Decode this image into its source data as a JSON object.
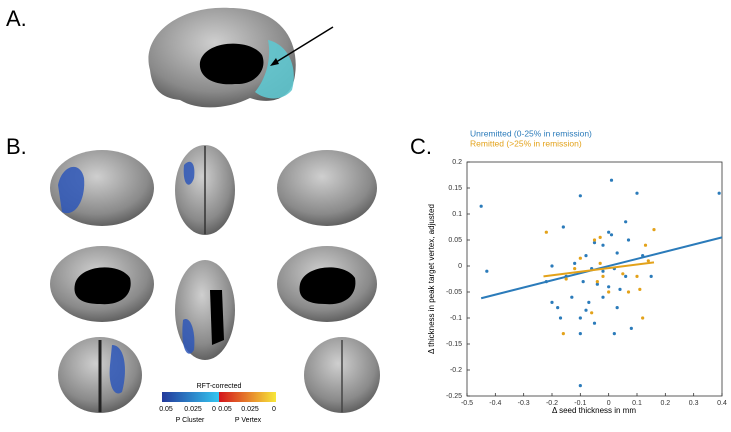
{
  "panels": {
    "a": "A.",
    "b": "B.",
    "c": "C."
  },
  "colorbar": {
    "title": "RFT-corrected",
    "left_ticks": [
      "0.05",
      "0.025",
      "0"
    ],
    "right_ticks": [
      "0.05",
      "0.025",
      "0"
    ],
    "left_label": "P Cluster",
    "right_label": "P Vertex"
  },
  "chart_data": {
    "type": "scatter",
    "xlabel": "Δ seed thickness in mm",
    "ylabel": "Δ thickness in peak target vertex, adjusted",
    "xlim": [
      -0.5,
      0.4
    ],
    "xticks": [
      -0.5,
      -0.4,
      -0.3,
      -0.2,
      -0.1,
      0,
      0.1,
      0.2,
      0.3,
      0.4
    ],
    "ylim": [
      -0.25,
      0.2
    ],
    "yticks": [
      -0.25,
      -0.2,
      -0.15,
      -0.1,
      -0.05,
      0,
      0.05,
      0.1,
      0.15,
      0.2
    ],
    "series": [
      {
        "name": "Unremitted (0-25% in remission)",
        "color": "#2b7bba",
        "x": [
          -0.45,
          -0.43,
          0.39,
          -0.1,
          0.01,
          -0.1,
          0.1,
          -0.16,
          0.06,
          0.01,
          0.0,
          -0.05,
          0.07,
          -0.02,
          -0.08,
          0.03,
          0.12,
          -0.2,
          -0.12,
          -0.06,
          -0.02,
          0.02,
          0.06,
          -0.15,
          -0.09,
          -0.04,
          0.0,
          0.04,
          -0.2,
          -0.18,
          -0.13,
          -0.07,
          -0.02,
          0.03,
          -0.17,
          -0.1,
          -0.05,
          0.08,
          -0.1,
          0.02,
          -0.22,
          0.15,
          -0.08
        ],
        "values": [
          0.115,
          -0.01,
          0.14,
          -0.23,
          0.165,
          0.135,
          0.14,
          0.075,
          0.085,
          0.06,
          0.065,
          0.045,
          0.05,
          0.04,
          0.02,
          0.025,
          0.02,
          0.0,
          0.005,
          -0.005,
          -0.01,
          -0.005,
          -0.02,
          -0.02,
          -0.03,
          -0.035,
          -0.04,
          -0.045,
          -0.07,
          -0.08,
          -0.06,
          -0.07,
          -0.06,
          -0.08,
          -0.1,
          -0.1,
          -0.11,
          -0.12,
          -0.13,
          -0.13,
          -0.03,
          -0.02,
          -0.085
        ],
        "trend_x": [
          -0.45,
          0.4
        ],
        "trend_y": [
          -0.062,
          0.055
        ]
      },
      {
        "name": "Remitted (>25% in remission)",
        "color": "#e3a21a",
        "x": [
          -0.22,
          -0.05,
          -0.03,
          0.13,
          0.16,
          -0.1,
          -0.12,
          0.05,
          -0.15,
          0.1,
          -0.04,
          0.0,
          -0.06,
          0.12,
          0.07,
          -0.16,
          -0.02,
          0.11,
          -0.03,
          0.14
        ],
        "values": [
          0.065,
          0.05,
          0.055,
          0.04,
          0.07,
          0.015,
          -0.005,
          -0.015,
          -0.025,
          -0.02,
          -0.03,
          -0.05,
          -0.09,
          -0.1,
          -0.05,
          -0.13,
          -0.02,
          -0.045,
          0.005,
          0.01
        ],
        "trend_x": [
          -0.23,
          0.16
        ],
        "trend_y": [
          -0.02,
          0.007
        ]
      }
    ]
  }
}
